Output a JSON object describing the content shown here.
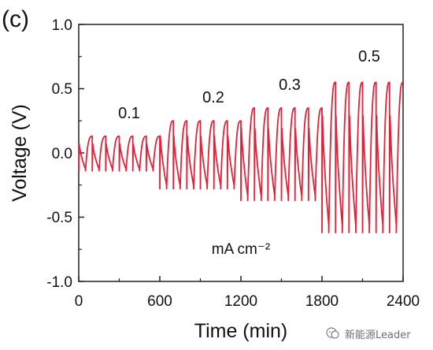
{
  "panel_label": "(c)",
  "watermark": "新能源Leader",
  "chart_data": {
    "type": "line",
    "xlabel": "Time (min)",
    "ylabel": "Voltage (V)",
    "xlim": [
      0,
      2400
    ],
    "ylim": [
      -1.0,
      1.0
    ],
    "xticks": [
      "0",
      "600",
      "1200",
      "1800",
      "2400"
    ],
    "yticks": [
      "1.0",
      "0.5",
      "0.0",
      "-0.5",
      "-1.0"
    ],
    "line_color": "#e0233a",
    "grid": false,
    "annotations": [
      "0.1",
      "0.2",
      "0.3",
      "0.5"
    ],
    "unit_label": "mA cm⁻²",
    "segments": [
      {
        "current": "0.1",
        "t_start": 0,
        "t_end": 600,
        "cycles": 6,
        "v_high": 0.13,
        "v_low": -0.14
      },
      {
        "current": "0.2",
        "t_start": 600,
        "t_end": 1200,
        "cycles": 6,
        "v_high": 0.25,
        "v_low": -0.28
      },
      {
        "current": "0.3",
        "t_start": 1200,
        "t_end": 1800,
        "cycles": 6,
        "v_high": 0.35,
        "v_low": -0.37
      },
      {
        "current": "0.5",
        "t_start": 1800,
        "t_end": 2400,
        "cycles": 6,
        "v_high": 0.55,
        "v_low": -0.62
      }
    ]
  }
}
